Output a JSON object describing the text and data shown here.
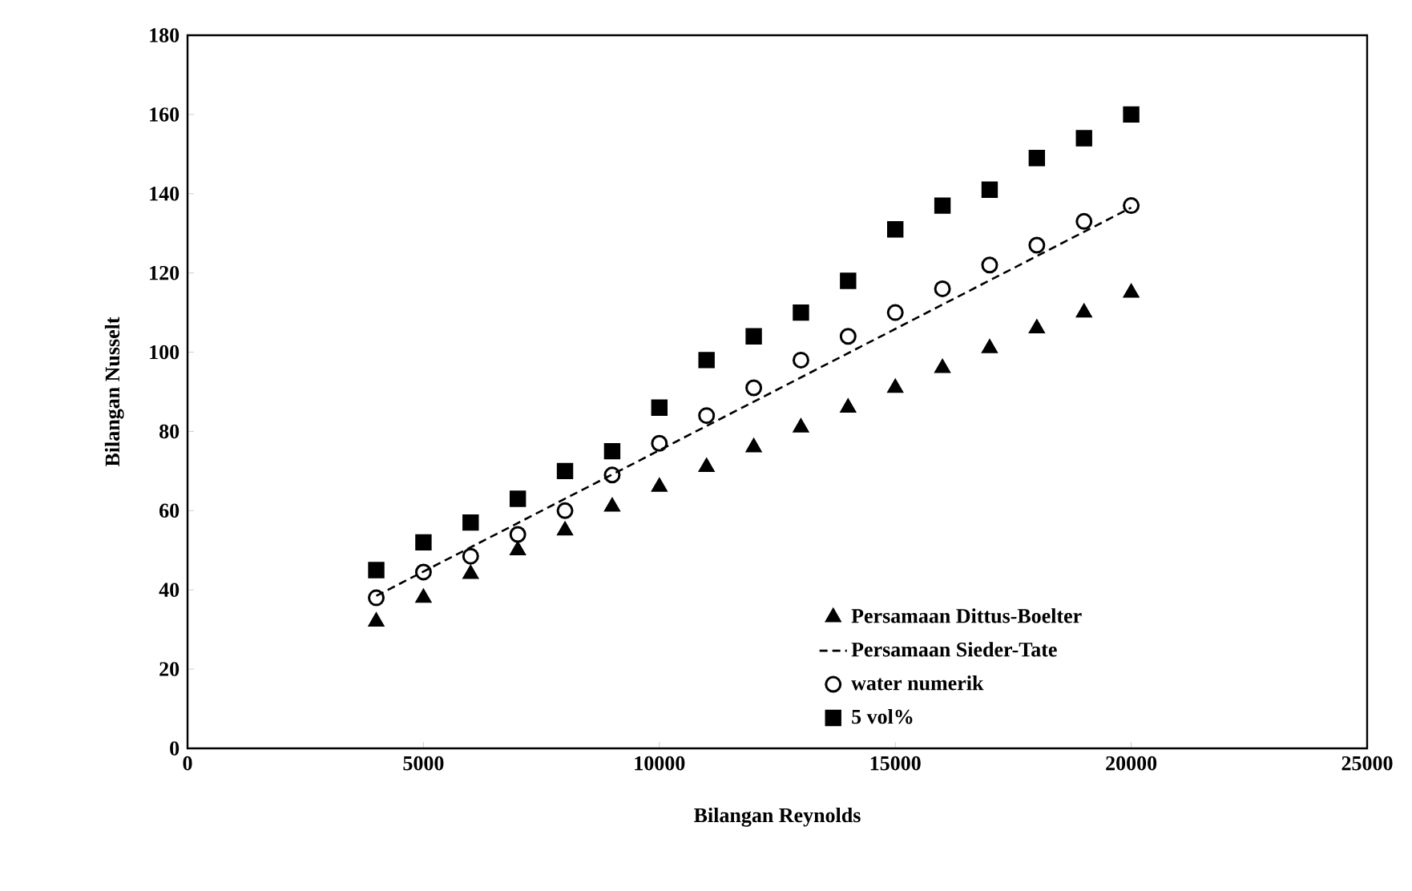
{
  "chart_data": {
    "type": "scatter",
    "xlabel": "Bilangan Reynolds",
    "ylabel": "Bilangan Nusselt",
    "x": [
      4000,
      5000,
      6000,
      7000,
      8000,
      9000,
      10000,
      11000,
      12000,
      13000,
      14000,
      15000,
      16000,
      17000,
      18000,
      19000,
      20000
    ],
    "series": [
      {
        "name": "Persamaan Dittus-Boelter",
        "color": "#000000",
        "marker": "triangle",
        "values": [
          32,
          38,
          44,
          50,
          55,
          61,
          66,
          71,
          76,
          81,
          86,
          91,
          96,
          101,
          106,
          110,
          115
        ]
      },
      {
        "name": "Persamaan Sieder-Tate",
        "color": "#000000",
        "type": "line",
        "line_style": "dashed",
        "marker": "none",
        "x": [
          4000,
          20000
        ],
        "values": [
          38.5,
          136.5
        ]
      },
      {
        "name": "water numerik",
        "color": "#000000",
        "marker": "circle",
        "values": [
          38,
          44.5,
          48.5,
          54,
          60,
          69,
          77,
          84,
          91,
          98,
          104,
          110,
          116,
          122,
          127,
          133,
          137
        ]
      },
      {
        "name": "5 vol%",
        "color": "#000000",
        "marker": "square",
        "values": [
          45,
          52,
          57,
          63,
          70,
          75,
          86,
          98,
          104,
          110,
          118,
          131,
          137,
          141,
          149,
          154,
          160
        ]
      }
    ],
    "xlim": [
      0,
      25000
    ],
    "xticks": [
      0,
      5000,
      10000,
      15000,
      20000,
      25000
    ],
    "ylim": [
      0,
      180
    ],
    "yticks": [
      0,
      20,
      40,
      60,
      80,
      100,
      120,
      140,
      160,
      180
    ],
    "grid": false,
    "legend": "bottom right"
  }
}
